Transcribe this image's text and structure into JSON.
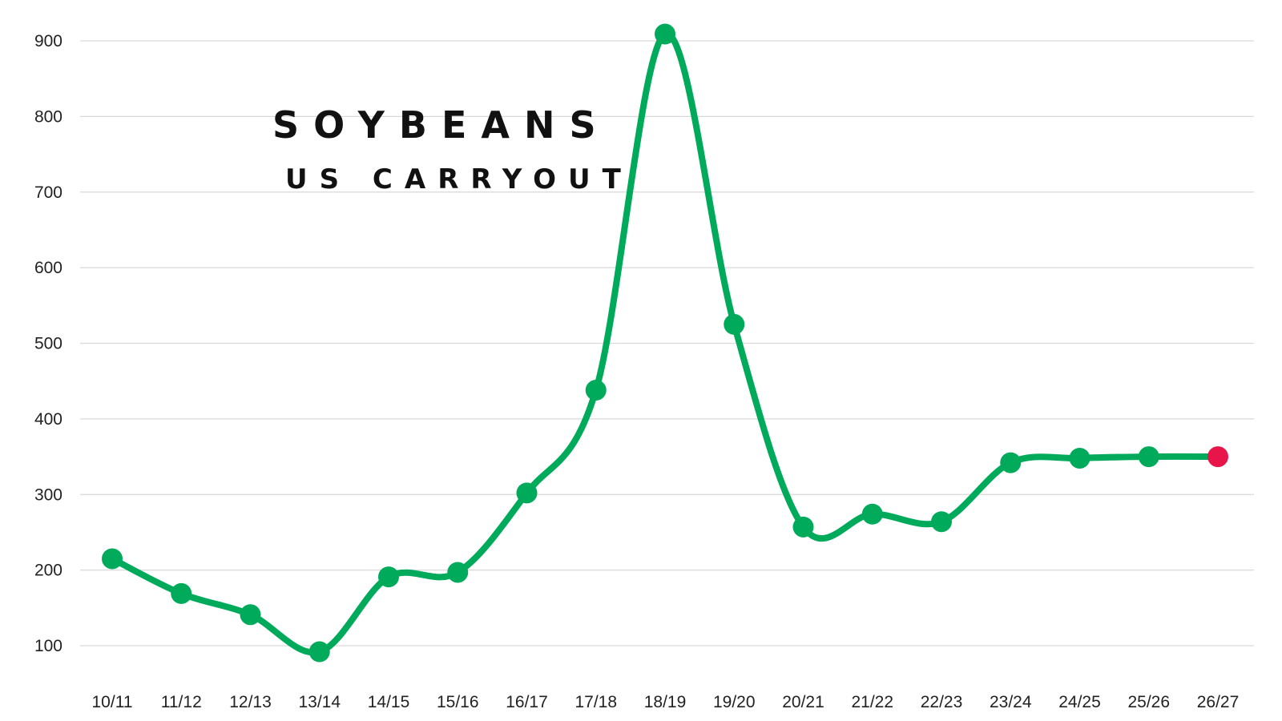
{
  "chart_data": {
    "type": "line",
    "title": "SOYBEANS",
    "subtitle": "US CARRYOUT",
    "xlabel": "",
    "ylabel": "",
    "categories": [
      "10/11",
      "11/12",
      "12/13",
      "13/14",
      "14/15",
      "15/16",
      "16/17",
      "17/18",
      "18/19",
      "19/20",
      "20/21",
      "21/22",
      "22/23",
      "23/24",
      "24/25",
      "25/26",
      "26/27"
    ],
    "series": [
      {
        "values": [
          215,
          169,
          141,
          92,
          191,
          197,
          302,
          438,
          909,
          525,
          257,
          274,
          264,
          342,
          348,
          350,
          350
        ]
      }
    ],
    "yticks": [
      100,
      200,
      300,
      400,
      500,
      600,
      700,
      800,
      900
    ],
    "ylim": [
      50,
      950
    ],
    "grid": true,
    "legend": "none",
    "colors": {
      "line": "#00aa5b",
      "marker": "#00aa5b",
      "highlight": "#e8154a"
    },
    "highlight_index": 16
  }
}
